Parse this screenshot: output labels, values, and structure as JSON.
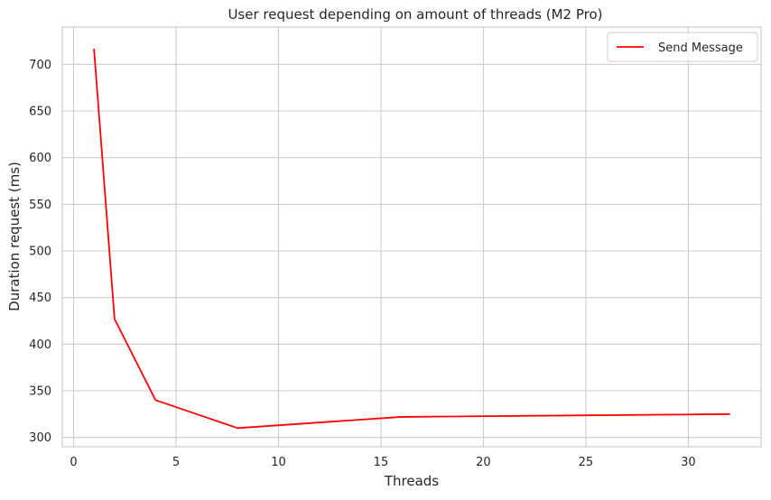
{
  "chart_data": {
    "type": "line",
    "title": "User request depending on amount of threads (M2 Pro)",
    "xlabel": "Threads",
    "ylabel": "Duration request (ms)",
    "xlim": [
      -0.55,
      33.55
    ],
    "ylim": [
      290,
      740
    ],
    "xticks": [
      0,
      5,
      10,
      15,
      20,
      25,
      30
    ],
    "yticks": [
      300,
      350,
      400,
      450,
      500,
      550,
      600,
      650,
      700
    ],
    "grid": true,
    "legend_position": "top-right",
    "series": [
      {
        "name": "Send Message",
        "color": "#ff0000",
        "x": [
          1,
          2,
          4,
          8,
          16,
          32
        ],
        "values": [
          716,
          427,
          340,
          310,
          322,
          325
        ]
      }
    ]
  }
}
